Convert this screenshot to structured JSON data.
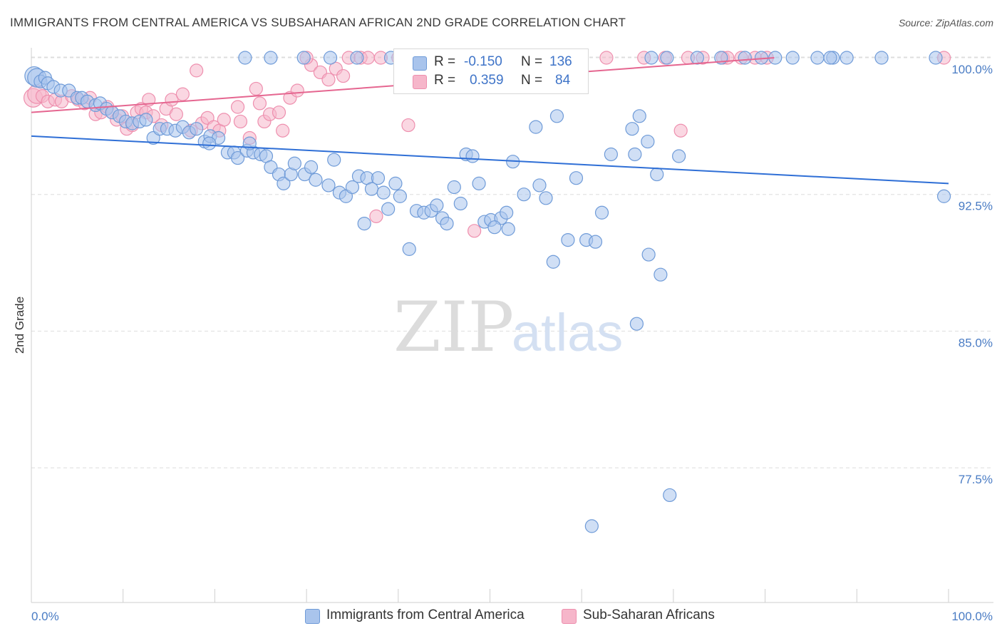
{
  "header": {
    "title": "IMMIGRANTS FROM CENTRAL AMERICA VS SUBSAHARAN AFRICAN 2ND GRADE CORRELATION CHART",
    "source": "Source: ZipAtlas.com"
  },
  "watermark": {
    "zip": "ZIP",
    "atlas": "atlas"
  },
  "legend_top": [
    {
      "r_label": "R =",
      "r_value": "-0.150",
      "n_label": "N =",
      "n_value": "136"
    },
    {
      "r_label": "R =",
      "r_value": "0.359",
      "n_label": "N =",
      "n_value": "84"
    }
  ],
  "legend_bottom": [
    {
      "label": "Immigrants from Central America"
    },
    {
      "label": "Sub-Saharan Africans"
    }
  ],
  "colors": {
    "blue_fill": "#a9c4ec",
    "blue_stroke": "#6f9bd8",
    "blue_line": "#2f6fd6",
    "pink_fill": "#f6b6ca",
    "pink_stroke": "#ee8fae",
    "pink_line": "#e56690",
    "tick_label": "#4a7cc4",
    "grid": "#dddddd"
  },
  "chart_data": {
    "type": "scatter",
    "title": "IMMIGRANTS FROM CENTRAL AMERICA VS SUBSAHARAN AFRICAN 2ND GRADE CORRELATION CHART",
    "xlabel": "",
    "ylabel": "2nd Grade",
    "x_tick_labels": [
      "0.0%",
      "100.0%"
    ],
    "y_tick_labels": [
      "100.0%",
      "92.5%",
      "85.0%",
      "77.5%"
    ],
    "y_ticks": [
      100.0,
      92.5,
      85.0,
      77.5
    ],
    "xlim": [
      0,
      100
    ],
    "ylim": [
      70.5,
      101.0
    ],
    "grid": true,
    "legend_position": "top-center",
    "series": [
      {
        "name": "Immigrants from Central America",
        "trend": {
          "x": [
            0,
            100
          ],
          "y": [
            95.7,
            93.1
          ]
        },
        "points": [
          [
            0.3,
            99.0
          ],
          [
            0.6,
            98.9
          ],
          [
            1.0,
            98.7
          ],
          [
            1.5,
            98.9
          ],
          [
            1.8,
            98.6
          ],
          [
            2.4,
            98.4
          ],
          [
            3.2,
            98.2
          ],
          [
            4.1,
            98.2
          ],
          [
            5.0,
            97.8
          ],
          [
            5.5,
            97.8
          ],
          [
            6.1,
            97.6
          ],
          [
            7.0,
            97.4
          ],
          [
            7.5,
            97.5
          ],
          [
            8.2,
            97.2
          ],
          [
            8.8,
            97.0
          ],
          [
            9.6,
            96.8
          ],
          [
            10.3,
            96.5
          ],
          [
            11.0,
            96.4
          ],
          [
            11.8,
            96.5
          ],
          [
            12.5,
            96.6
          ],
          [
            13.3,
            95.6
          ],
          [
            14.0,
            96.1
          ],
          [
            14.8,
            96.1
          ],
          [
            15.7,
            96.0
          ],
          [
            16.5,
            96.2
          ],
          [
            17.2,
            95.9
          ],
          [
            18.0,
            96.1
          ],
          [
            18.9,
            95.4
          ],
          [
            19.5,
            95.7
          ],
          [
            20.4,
            95.6
          ],
          [
            19.4,
            95.3
          ],
          [
            21.4,
            94.8
          ],
          [
            22.1,
            94.8
          ],
          [
            22.5,
            94.5
          ],
          [
            23.5,
            94.9
          ],
          [
            24.2,
            94.8
          ],
          [
            23.8,
            95.3
          ],
          [
            25.0,
            94.7
          ],
          [
            25.6,
            94.6
          ],
          [
            26.1,
            94.0
          ],
          [
            27.0,
            93.6
          ],
          [
            27.5,
            93.1
          ],
          [
            28.3,
            93.6
          ],
          [
            28.7,
            94.2
          ],
          [
            29.8,
            93.6
          ],
          [
            30.5,
            94.0
          ],
          [
            31.0,
            93.3
          ],
          [
            32.4,
            93.0
          ],
          [
            33.0,
            94.4
          ],
          [
            33.6,
            92.6
          ],
          [
            34.3,
            92.4
          ],
          [
            35.0,
            92.9
          ],
          [
            35.7,
            93.5
          ],
          [
            36.6,
            93.4
          ],
          [
            37.1,
            92.8
          ],
          [
            37.8,
            93.4
          ],
          [
            38.4,
            92.6
          ],
          [
            38.9,
            91.7
          ],
          [
            39.7,
            93.1
          ],
          [
            40.2,
            92.4
          ],
          [
            36.3,
            90.9
          ],
          [
            42.0,
            91.6
          ],
          [
            42.8,
            91.5
          ],
          [
            43.6,
            91.6
          ],
          [
            44.2,
            91.9
          ],
          [
            44.8,
            91.2
          ],
          [
            45.3,
            90.9
          ],
          [
            41.2,
            89.5
          ],
          [
            46.1,
            92.9
          ],
          [
            46.8,
            92.0
          ],
          [
            47.4,
            94.7
          ],
          [
            48.1,
            94.6
          ],
          [
            48.8,
            93.1
          ],
          [
            49.4,
            91.0
          ],
          [
            50.1,
            91.1
          ],
          [
            51.2,
            91.2
          ],
          [
            52.5,
            94.3
          ],
          [
            51.8,
            91.5
          ],
          [
            50.5,
            90.7
          ],
          [
            52.0,
            90.6
          ],
          [
            53.7,
            92.5
          ],
          [
            55.0,
            96.2
          ],
          [
            55.4,
            93.0
          ],
          [
            56.1,
            92.3
          ],
          [
            57.3,
            96.8
          ],
          [
            58.5,
            90.0
          ],
          [
            59.4,
            93.4
          ],
          [
            56.9,
            88.8
          ],
          [
            60.5,
            90.0
          ],
          [
            61.5,
            89.9
          ],
          [
            62.2,
            91.5
          ],
          [
            63.2,
            94.7
          ],
          [
            65.5,
            96.1
          ],
          [
            66.3,
            96.8
          ],
          [
            65.8,
            94.7
          ],
          [
            67.2,
            95.4
          ],
          [
            68.2,
            93.6
          ],
          [
            67.3,
            89.2
          ],
          [
            68.6,
            88.1
          ],
          [
            66.0,
            85.4
          ],
          [
            70.6,
            94.6
          ],
          [
            72.6,
            100.0
          ],
          [
            75.2,
            100.0
          ],
          [
            77.8,
            100.0
          ],
          [
            79.6,
            100.0
          ],
          [
            81.1,
            100.0
          ],
          [
            83.0,
            100.0
          ],
          [
            85.7,
            100.0
          ],
          [
            87.4,
            100.0
          ],
          [
            88.9,
            100.0
          ],
          [
            92.7,
            100.0
          ],
          [
            98.6,
            100.0
          ],
          [
            67.6,
            100.0
          ],
          [
            69.3,
            100.0
          ],
          [
            59.5,
            100.0
          ],
          [
            55.4,
            100.0
          ],
          [
            52.6,
            100.0
          ],
          [
            47.0,
            100.0
          ],
          [
            44.6,
            100.0
          ],
          [
            41.6,
            100.0
          ],
          [
            39.2,
            100.0
          ],
          [
            35.5,
            100.0
          ],
          [
            32.6,
            100.0
          ],
          [
            29.7,
            100.0
          ],
          [
            26.1,
            100.0
          ],
          [
            23.3,
            100.0
          ],
          [
            99.5,
            92.4
          ],
          [
            69.6,
            76.0
          ],
          [
            61.1,
            74.3
          ],
          [
            87.1,
            100.0
          ]
        ]
      },
      {
        "name": "Sub-Saharan Africans",
        "trend": {
          "x": [
            0,
            81
          ],
          "y": [
            97.0,
            100.0
          ]
        },
        "points": [
          [
            0.2,
            97.8
          ],
          [
            0.6,
            98.0
          ],
          [
            1.2,
            97.9
          ],
          [
            1.8,
            97.6
          ],
          [
            2.6,
            97.7
          ],
          [
            3.3,
            97.6
          ],
          [
            4.4,
            97.9
          ],
          [
            5.1,
            97.7
          ],
          [
            5.8,
            97.5
          ],
          [
            6.4,
            97.8
          ],
          [
            7.0,
            96.9
          ],
          [
            7.6,
            97.0
          ],
          [
            8.3,
            97.3
          ],
          [
            8.8,
            97.0
          ],
          [
            9.3,
            96.6
          ],
          [
            9.9,
            96.8
          ],
          [
            10.4,
            96.1
          ],
          [
            11.0,
            96.3
          ],
          [
            11.5,
            97.0
          ],
          [
            12.0,
            97.2
          ],
          [
            12.5,
            97.0
          ],
          [
            12.8,
            97.7
          ],
          [
            13.3,
            96.8
          ],
          [
            14.2,
            96.3
          ],
          [
            14.7,
            97.2
          ],
          [
            15.3,
            97.7
          ],
          [
            15.8,
            96.9
          ],
          [
            16.5,
            98.0
          ],
          [
            17.4,
            96.0
          ],
          [
            18.0,
            99.3
          ],
          [
            18.6,
            96.4
          ],
          [
            19.2,
            96.7
          ],
          [
            19.9,
            96.2
          ],
          [
            20.5,
            96.0
          ],
          [
            21.0,
            96.6
          ],
          [
            22.5,
            97.3
          ],
          [
            22.8,
            96.5
          ],
          [
            23.8,
            95.6
          ],
          [
            24.5,
            98.3
          ],
          [
            24.9,
            97.5
          ],
          [
            25.4,
            96.5
          ],
          [
            26.0,
            96.9
          ],
          [
            27.0,
            97.0
          ],
          [
            27.4,
            96.0
          ],
          [
            28.2,
            97.8
          ],
          [
            29.0,
            98.2
          ],
          [
            30.5,
            99.6
          ],
          [
            31.5,
            99.2
          ],
          [
            32.4,
            98.8
          ],
          [
            33.2,
            99.4
          ],
          [
            34.0,
            99.0
          ],
          [
            30.0,
            100.0
          ],
          [
            34.6,
            100.0
          ],
          [
            35.9,
            100.0
          ],
          [
            36.7,
            100.0
          ],
          [
            38.1,
            100.0
          ],
          [
            40.0,
            100.0
          ],
          [
            41.0,
            100.0
          ],
          [
            42.5,
            100.0
          ],
          [
            43.4,
            100.0
          ],
          [
            44.2,
            100.0
          ],
          [
            46.0,
            100.0
          ],
          [
            48.3,
            100.0
          ],
          [
            50.1,
            100.0
          ],
          [
            51.0,
            100.0
          ],
          [
            52.5,
            100.0
          ],
          [
            53.7,
            100.0
          ],
          [
            55.4,
            100.0
          ],
          [
            57.9,
            100.0
          ],
          [
            62.7,
            100.0
          ],
          [
            66.8,
            100.0
          ],
          [
            69.1,
            100.0
          ],
          [
            71.6,
            100.0
          ],
          [
            73.2,
            100.0
          ],
          [
            75.4,
            100.0
          ],
          [
            75.9,
            100.0
          ],
          [
            77.4,
            100.0
          ],
          [
            78.9,
            100.0
          ],
          [
            80.2,
            100.0
          ],
          [
            99.5,
            100.0
          ],
          [
            37.6,
            91.3
          ],
          [
            41.1,
            96.3
          ],
          [
            48.3,
            90.5
          ],
          [
            70.8,
            96.0
          ]
        ]
      }
    ]
  }
}
